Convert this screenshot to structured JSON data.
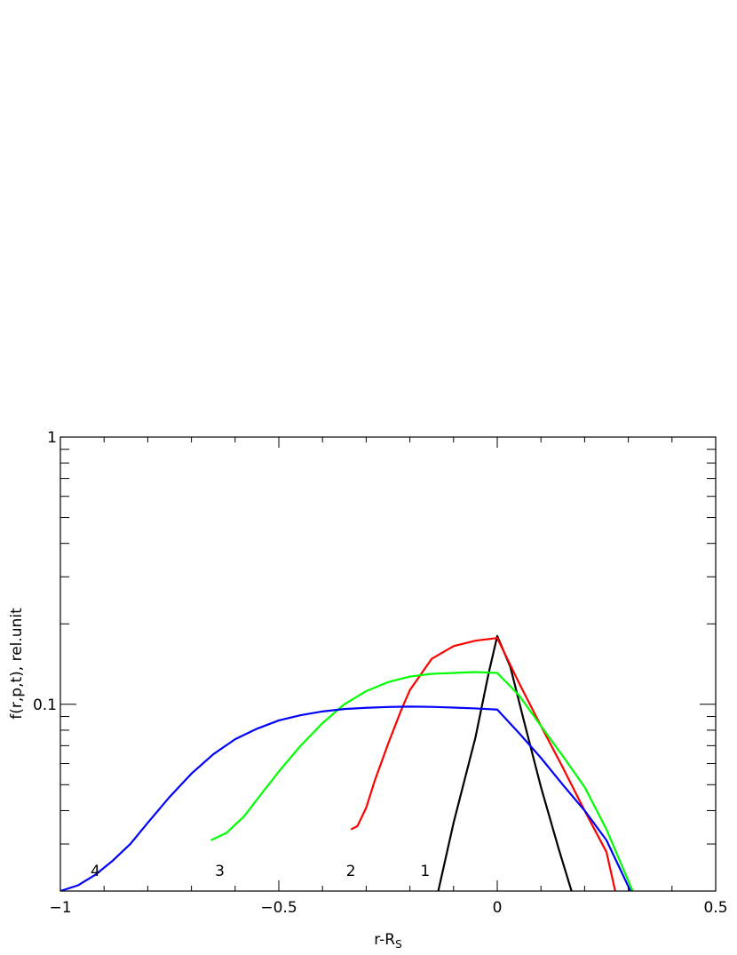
{
  "chart_data": {
    "type": "line",
    "xlabel": "r-R",
    "xlabel_subscript": "S",
    "ylabel": "f(r,p,t), rel.unit",
    "xlim": [
      -1,
      0.5
    ],
    "ylim": [
      0.02,
      1
    ],
    "y_scale": "log",
    "x_ticks": [
      {
        "value": -1,
        "label": "−1"
      },
      {
        "value": -0.5,
        "label": "−0.5"
      },
      {
        "value": 0,
        "label": "0"
      },
      {
        "value": 0.5,
        "label": "0.5"
      }
    ],
    "y_ticks": [
      {
        "value": 0.1,
        "label": "0.1"
      },
      {
        "value": 1,
        "label": "1"
      }
    ],
    "series": [
      {
        "name": "1",
        "color": "#000000",
        "points": [
          [
            -0.135,
            0.02
          ],
          [
            -0.1,
            0.036
          ],
          [
            -0.05,
            0.075
          ],
          [
            -0.02,
            0.13
          ],
          [
            0,
            0.18
          ],
          [
            0.03,
            0.138
          ],
          [
            0.06,
            0.088
          ],
          [
            0.1,
            0.049
          ],
          [
            0.14,
            0.029
          ],
          [
            0.17,
            0.02
          ]
        ]
      },
      {
        "name": "2",
        "color": "#ff0000",
        "points": [
          [
            -0.335,
            0.034
          ],
          [
            -0.32,
            0.035
          ],
          [
            -0.3,
            0.041
          ],
          [
            -0.28,
            0.052
          ],
          [
            -0.25,
            0.071
          ],
          [
            -0.22,
            0.095
          ],
          [
            -0.2,
            0.113
          ],
          [
            -0.15,
            0.148
          ],
          [
            -0.1,
            0.165
          ],
          [
            -0.05,
            0.173
          ],
          [
            0,
            0.177
          ],
          [
            0.05,
            0.12
          ],
          [
            0.1,
            0.083
          ],
          [
            0.15,
            0.058
          ],
          [
            0.2,
            0.04
          ],
          [
            0.25,
            0.028
          ],
          [
            0.27,
            0.02
          ]
        ]
      },
      {
        "name": "3",
        "color": "#00ff00",
        "points": [
          [
            -0.655,
            0.031
          ],
          [
            -0.62,
            0.033
          ],
          [
            -0.58,
            0.038
          ],
          [
            -0.55,
            0.044
          ],
          [
            -0.5,
            0.056
          ],
          [
            -0.45,
            0.07
          ],
          [
            -0.4,
            0.085
          ],
          [
            -0.35,
            0.1
          ],
          [
            -0.3,
            0.112
          ],
          [
            -0.25,
            0.121
          ],
          [
            -0.2,
            0.127
          ],
          [
            -0.15,
            0.13
          ],
          [
            -0.1,
            0.131
          ],
          [
            -0.05,
            0.132
          ],
          [
            0,
            0.131
          ],
          [
            0.05,
            0.108
          ],
          [
            0.1,
            0.083
          ],
          [
            0.15,
            0.064
          ],
          [
            0.2,
            0.049
          ],
          [
            0.25,
            0.034
          ],
          [
            0.31,
            0.02
          ]
        ]
      },
      {
        "name": "4",
        "color": "#0000ff",
        "points": [
          [
            -1.0,
            0.02
          ],
          [
            -0.96,
            0.021
          ],
          [
            -0.92,
            0.023
          ],
          [
            -0.88,
            0.026
          ],
          [
            -0.84,
            0.03
          ],
          [
            -0.8,
            0.036
          ],
          [
            -0.75,
            0.045
          ],
          [
            -0.7,
            0.055
          ],
          [
            -0.65,
            0.065
          ],
          [
            -0.6,
            0.074
          ],
          [
            -0.55,
            0.081
          ],
          [
            -0.5,
            0.087
          ],
          [
            -0.45,
            0.091
          ],
          [
            -0.4,
            0.094
          ],
          [
            -0.35,
            0.096
          ],
          [
            -0.3,
            0.097
          ],
          [
            -0.25,
            0.0977
          ],
          [
            -0.2,
            0.098
          ],
          [
            -0.15,
            0.0978
          ],
          [
            -0.1,
            0.0972
          ],
          [
            -0.05,
            0.0965
          ],
          [
            0,
            0.0955
          ],
          [
            0.05,
            0.078
          ],
          [
            0.1,
            0.063
          ],
          [
            0.15,
            0.05
          ],
          [
            0.2,
            0.04
          ],
          [
            0.25,
            0.031
          ],
          [
            0.305,
            0.02
          ]
        ]
      }
    ],
    "curve_labels": [
      {
        "text": "4",
        "x": -0.92,
        "y": 0.0228
      },
      {
        "text": "3",
        "x": -0.635,
        "y": 0.0228
      },
      {
        "text": "2",
        "x": -0.335,
        "y": 0.0228
      },
      {
        "text": "1",
        "x": -0.165,
        "y": 0.0228
      }
    ],
    "grid": false
  }
}
